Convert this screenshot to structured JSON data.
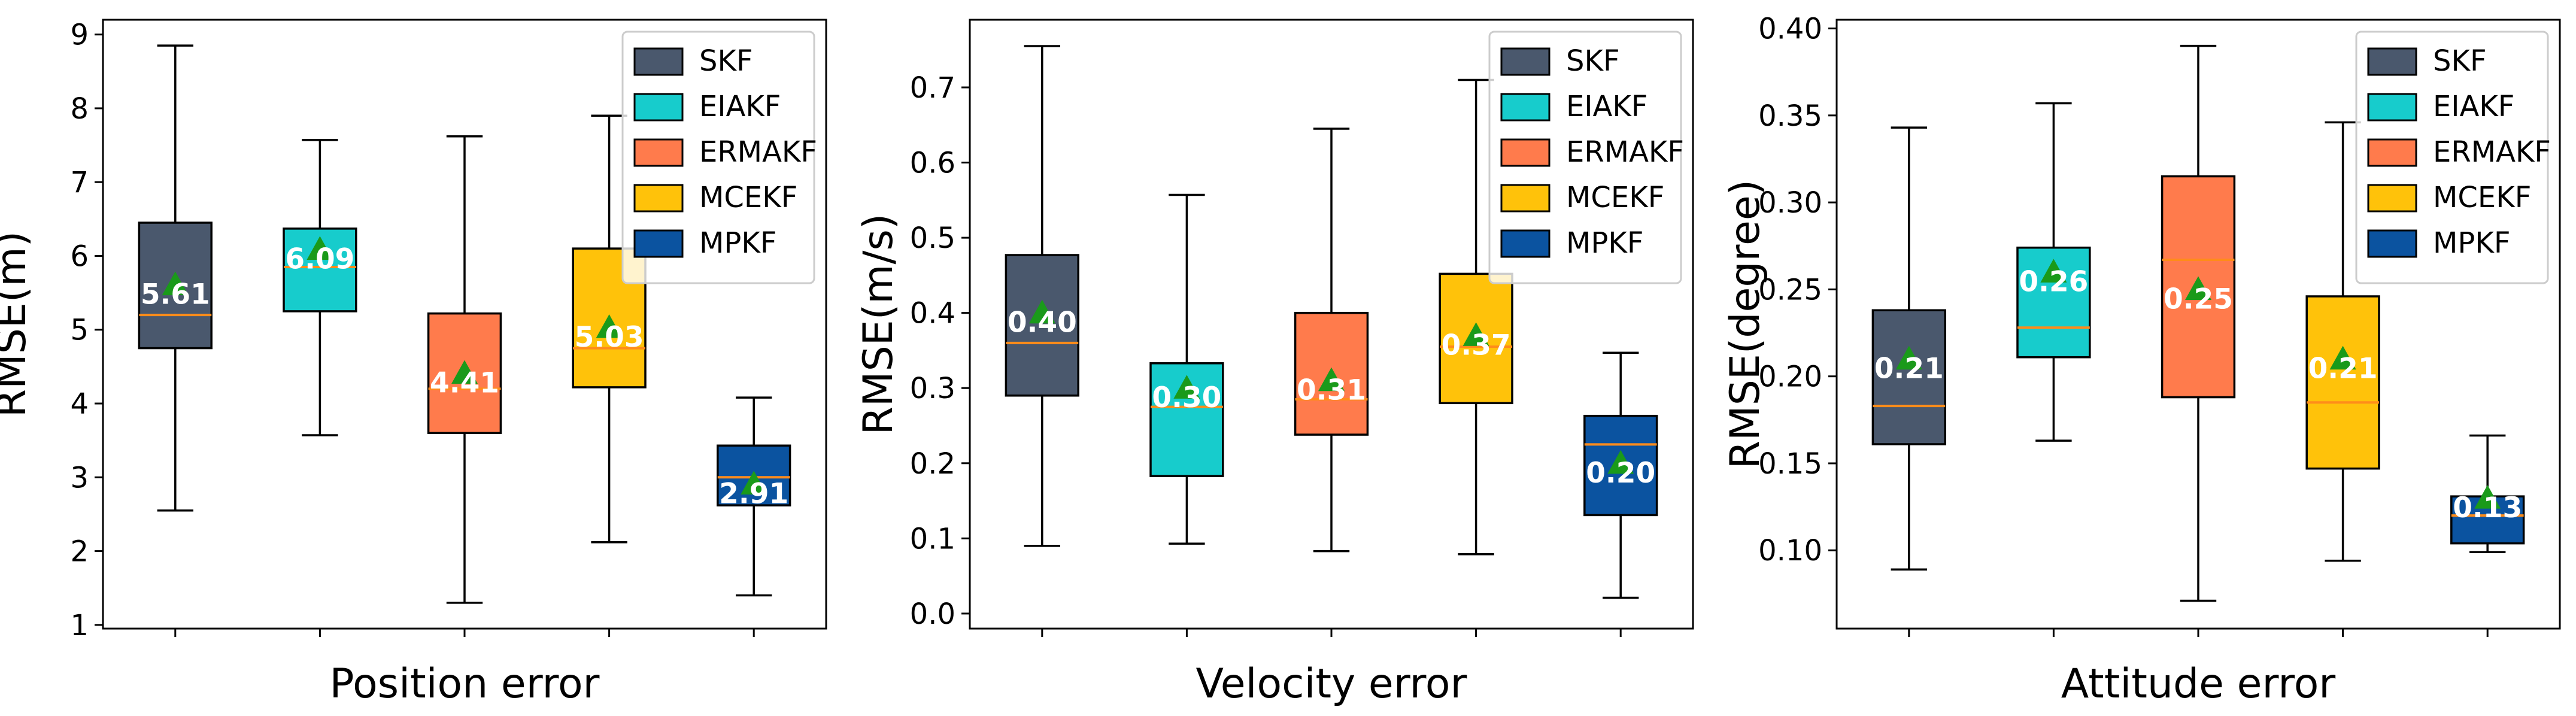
{
  "chart_data": [
    {
      "type": "box",
      "title": "",
      "xlabel": "Position error",
      "ylabel": "RMSE(m)",
      "ylim": [
        0.95,
        9.2
      ],
      "yticks": [
        1,
        2,
        3,
        4,
        5,
        6,
        7,
        8,
        9
      ],
      "tick_labels": [
        "1",
        "2",
        "3",
        "4",
        "5",
        "6",
        "7",
        "8",
        "9"
      ],
      "legend_position": "top-right",
      "series": [
        {
          "name": "SKF",
          "whisker_low": 2.55,
          "q1": 4.75,
          "median": 5.2,
          "q3": 6.45,
          "whisker_high": 8.85,
          "mean": 5.61,
          "mean_label": "5.61"
        },
        {
          "name": "EIAKF",
          "whisker_low": 3.57,
          "q1": 5.25,
          "median": 5.85,
          "q3": 6.37,
          "whisker_high": 7.57,
          "mean": 6.09,
          "mean_label": "6.09"
        },
        {
          "name": "ERMAKF",
          "whisker_low": 1.3,
          "q1": 3.6,
          "median": 4.2,
          "q3": 5.22,
          "whisker_high": 7.62,
          "mean": 4.41,
          "mean_label": "4.41"
        },
        {
          "name": "MCEKF",
          "whisker_low": 2.12,
          "q1": 4.22,
          "median": 4.75,
          "q3": 6.1,
          "whisker_high": 7.9,
          "mean": 5.03,
          "mean_label": "5.03"
        },
        {
          "name": "MPKF",
          "whisker_low": 1.4,
          "q1": 2.62,
          "median": 3.0,
          "q3": 3.43,
          "whisker_high": 4.08,
          "mean": 2.91,
          "mean_label": "2.91"
        }
      ]
    },
    {
      "type": "box",
      "title": "",
      "xlabel": "Velocity error",
      "ylabel": "RMSE(m/s)",
      "ylim": [
        -0.02,
        0.79
      ],
      "yticks": [
        0.0,
        0.1,
        0.2,
        0.3,
        0.4,
        0.5,
        0.6,
        0.7
      ],
      "tick_labels": [
        "0.0",
        "0.1",
        "0.2",
        "0.3",
        "0.4",
        "0.5",
        "0.6",
        "0.7"
      ],
      "legend_position": "top-right",
      "series": [
        {
          "name": "SKF",
          "whisker_low": 0.09,
          "q1": 0.29,
          "median": 0.36,
          "q3": 0.477,
          "whisker_high": 0.755,
          "mean": 0.4,
          "mean_label": "0.40"
        },
        {
          "name": "EIAKF",
          "whisker_low": 0.093,
          "q1": 0.183,
          "median": 0.275,
          "q3": 0.333,
          "whisker_high": 0.557,
          "mean": 0.3,
          "mean_label": "0.30"
        },
        {
          "name": "ERMAKF",
          "whisker_low": 0.083,
          "q1": 0.238,
          "median": 0.285,
          "q3": 0.4,
          "whisker_high": 0.645,
          "mean": 0.31,
          "mean_label": "0.31"
        },
        {
          "name": "MCEKF",
          "whisker_low": 0.079,
          "q1": 0.28,
          "median": 0.355,
          "q3": 0.452,
          "whisker_high": 0.71,
          "mean": 0.37,
          "mean_label": "0.37"
        },
        {
          "name": "MPKF",
          "whisker_low": 0.021,
          "q1": 0.131,
          "median": 0.225,
          "q3": 0.263,
          "whisker_high": 0.347,
          "mean": 0.2,
          "mean_label": "0.20"
        }
      ]
    },
    {
      "type": "box",
      "title": "",
      "xlabel": "Attitude error",
      "ylabel": "RMSE(degree)",
      "ylim": [
        0.055,
        0.405
      ],
      "yticks": [
        0.1,
        0.15,
        0.2,
        0.25,
        0.3,
        0.35,
        0.4
      ],
      "tick_labels": [
        "0.10",
        "0.15",
        "0.20",
        "0.25",
        "0.30",
        "0.35",
        "0.40"
      ],
      "legend_position": "top-right",
      "series": [
        {
          "name": "SKF",
          "whisker_low": 0.089,
          "q1": 0.161,
          "median": 0.183,
          "q3": 0.238,
          "whisker_high": 0.343,
          "mean": 0.21,
          "mean_label": "0.21"
        },
        {
          "name": "EIAKF",
          "whisker_low": 0.163,
          "q1": 0.211,
          "median": 0.228,
          "q3": 0.274,
          "whisker_high": 0.357,
          "mean": 0.26,
          "mean_label": "0.26"
        },
        {
          "name": "ERMAKF",
          "whisker_low": 0.071,
          "q1": 0.188,
          "median": 0.267,
          "q3": 0.315,
          "whisker_high": 0.39,
          "mean": 0.25,
          "mean_label": "0.25"
        },
        {
          "name": "MCEKF",
          "whisker_low": 0.094,
          "q1": 0.147,
          "median": 0.185,
          "q3": 0.246,
          "whisker_high": 0.346,
          "mean": 0.21,
          "mean_label": "0.21"
        },
        {
          "name": "MPKF",
          "whisker_low": 0.099,
          "q1": 0.104,
          "median": 0.12,
          "q3": 0.131,
          "whisker_high": 0.166,
          "mean": 0.13,
          "mean_label": "0.13"
        }
      ]
    }
  ],
  "legend": [
    {
      "label": "SKF",
      "color": "#4a586d"
    },
    {
      "label": "EIAKF",
      "color": "#17cccc"
    },
    {
      "label": "ERMAKF",
      "color": "#ff7b4c"
    },
    {
      "label": "MCEKF",
      "color": "#ffc20a"
    },
    {
      "label": "MPKF",
      "color": "#0b53a0"
    }
  ],
  "colors": {
    "median_line": "#ff8c1a",
    "mean_marker": "#1a9a1a",
    "mean_label_text": "#ffffff",
    "axis": "#000000"
  }
}
